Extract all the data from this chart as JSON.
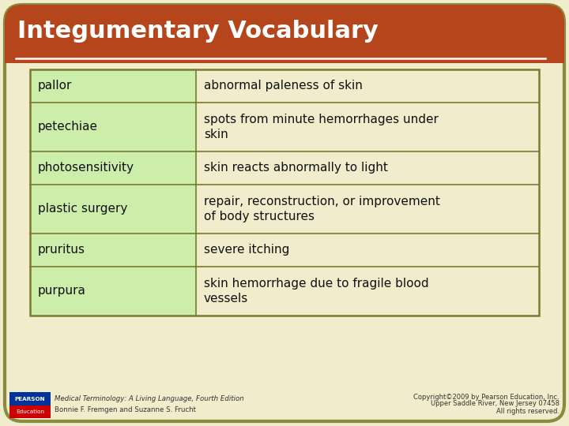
{
  "title": "Integumentary Vocabulary",
  "title_bg_color": "#b5451b",
  "title_text_color": "#ffffff",
  "page_bg_color": "#f0eccc",
  "table_border_color": "#7a7a30",
  "left_col_bg": "#cceeaa",
  "right_col_bg": "#f0eccc",
  "terms": [
    "pallor",
    "petechiae",
    "photosensitivity",
    "plastic surgery",
    "pruritus",
    "purpura"
  ],
  "definitions": [
    "abnormal paleness of skin",
    "spots from minute hemorrhages under\nskin",
    "skin reacts abnormally to light",
    "repair, reconstruction, or improvement\nof body structures",
    "severe itching",
    "skin hemorrhage due to fragile blood\nvessels"
  ],
  "footer_left_line1": "Medical Terminology: A Living Language, Fourth Edition",
  "footer_left_line2": "Bonnie F. Fremgen and Suzanne S. Frucht",
  "footer_right_line1": "Copyright©2009 by Pearson Education, Inc.",
  "footer_right_line2": "Upper Saddle River, New Jersey 07458",
  "footer_right_line3": "All rights reserved.",
  "pearson_box_color1": "#003399",
  "pearson_box_color2": "#cc0000",
  "outer_border_color": "#8a8a40",
  "white_line_color": "#ffffff"
}
